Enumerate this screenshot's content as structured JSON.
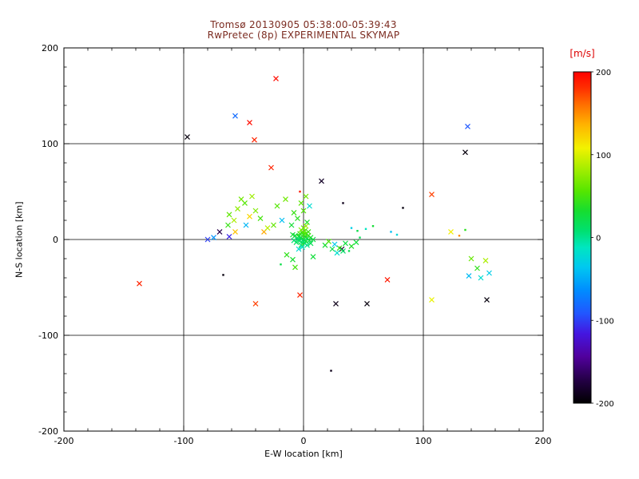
{
  "colors": {
    "title": "#7b2b20",
    "axis": "#000000",
    "mps_label": "#dd0000"
  },
  "chart_data": {
    "type": "scatter",
    "title": "Tromsø 20130905 05:38:00-05:39:43",
    "subtitle": "RwPretec (8p) EXPERIMENTAL SKYMAP",
    "xlabel": "E-W location [km]",
    "ylabel": "N-S location [km]",
    "xlim": [
      -200,
      200
    ],
    "ylim": [
      -200,
      200
    ],
    "xticks": [
      -200,
      -100,
      0,
      100,
      200
    ],
    "yticks": [
      -200,
      -100,
      0,
      100,
      200
    ],
    "minor_tick_step": 20,
    "grid": true,
    "colorbar": {
      "label": "[m/s]",
      "units": "m/s",
      "min": -200,
      "max": 200,
      "ticks": [
        200,
        100,
        0,
        -100,
        -200
      ],
      "stops": [
        [
          0.0,
          "#000000"
        ],
        [
          0.07,
          "#240046"
        ],
        [
          0.14,
          "#51009c"
        ],
        [
          0.21,
          "#4416e0"
        ],
        [
          0.27,
          "#2255ff"
        ],
        [
          0.34,
          "#008cff"
        ],
        [
          0.41,
          "#00c8f0"
        ],
        [
          0.47,
          "#00e6c0"
        ],
        [
          0.52,
          "#00e070"
        ],
        [
          0.58,
          "#16dd30"
        ],
        [
          0.64,
          "#55e600"
        ],
        [
          0.71,
          "#a8ee00"
        ],
        [
          0.77,
          "#f2f200"
        ],
        [
          0.84,
          "#ffb400"
        ],
        [
          0.9,
          "#ff7000"
        ],
        [
          0.95,
          "#ff3000"
        ],
        [
          1.0,
          "#ff0000"
        ]
      ]
    },
    "points_format": [
      "x_km",
      "y_km",
      "velocity_mps",
      "marker(x=cross,d=dot)"
    ],
    "points": [
      [
        -23,
        168,
        195,
        "x"
      ],
      [
        -97,
        107,
        -195,
        "x"
      ],
      [
        -57,
        129,
        -80,
        "x"
      ],
      [
        -45,
        122,
        195,
        "x"
      ],
      [
        -41,
        104,
        185,
        "x"
      ],
      [
        137,
        118,
        -90,
        "x"
      ],
      [
        135,
        91,
        -195,
        "x"
      ],
      [
        -27,
        75,
        185,
        "x"
      ],
      [
        15,
        61,
        -185,
        "x"
      ],
      [
        -3,
        50,
        190,
        "d"
      ],
      [
        83,
        33,
        -195,
        "d"
      ],
      [
        33,
        38,
        -190,
        "d"
      ],
      [
        -137,
        -46,
        185,
        "x"
      ],
      [
        -67,
        -37,
        -195,
        "d"
      ],
      [
        70,
        -42,
        190,
        "x"
      ],
      [
        27,
        -67,
        -190,
        "x"
      ],
      [
        53,
        -67,
        -195,
        "x"
      ],
      [
        -3,
        -58,
        185,
        "x"
      ],
      [
        -40,
        -67,
        175,
        "x"
      ],
      [
        153,
        -63,
        -195,
        "x"
      ],
      [
        107,
        -63,
        105,
        "x"
      ],
      [
        23,
        -137,
        -190,
        "d"
      ],
      [
        107,
        47,
        175,
        "x"
      ],
      [
        32,
        -10,
        -185,
        "x"
      ],
      [
        -62,
        26,
        60,
        "x"
      ],
      [
        -55,
        32,
        75,
        "x"
      ],
      [
        -49,
        38,
        55,
        "x"
      ],
      [
        -58,
        20,
        85,
        "x"
      ],
      [
        -45,
        24,
        120,
        "x"
      ],
      [
        -52,
        42,
        65,
        "x"
      ],
      [
        -63,
        15,
        45,
        "x"
      ],
      [
        -48,
        15,
        -45,
        "x"
      ],
      [
        -40,
        30,
        70,
        "x"
      ],
      [
        -36,
        22,
        50,
        "x"
      ],
      [
        -43,
        45,
        80,
        "x"
      ],
      [
        -57,
        8,
        130,
        "x"
      ],
      [
        -62,
        3,
        -110,
        "x"
      ],
      [
        -70,
        8,
        -170,
        "x"
      ],
      [
        -75,
        2,
        -60,
        "x"
      ],
      [
        -80,
        0,
        -100,
        "x"
      ],
      [
        -33,
        8,
        140,
        "x"
      ],
      [
        -25,
        15,
        60,
        "x"
      ],
      [
        -18,
        20,
        -40,
        "x"
      ],
      [
        -30,
        12,
        90,
        "x"
      ],
      [
        -22,
        35,
        55,
        "x"
      ],
      [
        -15,
        42,
        65,
        "x"
      ],
      [
        0,
        30,
        55,
        "x"
      ],
      [
        -2,
        38,
        58,
        "x"
      ],
      [
        2,
        45,
        65,
        "x"
      ],
      [
        -8,
        28,
        45,
        "x"
      ],
      [
        5,
        35,
        -20,
        "x"
      ],
      [
        -5,
        22,
        40,
        "x"
      ],
      [
        3,
        18,
        35,
        "x"
      ],
      [
        -10,
        15,
        30,
        "x"
      ],
      [
        -2,
        2,
        30,
        "x"
      ],
      [
        0,
        0,
        22,
        "x"
      ],
      [
        1,
        3,
        40,
        "x"
      ],
      [
        -3,
        -1,
        12,
        "x"
      ],
      [
        2,
        -2,
        26,
        "x"
      ],
      [
        0,
        5,
        36,
        "x"
      ],
      [
        -1,
        7,
        46,
        "x"
      ],
      [
        3,
        1,
        16,
        "x"
      ],
      [
        -4,
        3,
        20,
        "x"
      ],
      [
        1,
        -4,
        30,
        "x"
      ],
      [
        -2,
        -6,
        24,
        "x"
      ],
      [
        4,
        4,
        50,
        "x"
      ],
      [
        -5,
        0,
        10,
        "x"
      ],
      [
        2,
        6,
        60,
        "x"
      ],
      [
        0,
        -2,
        6,
        "x"
      ],
      [
        -1,
        -8,
        -12,
        "x"
      ],
      [
        5,
        -1,
        20,
        "x"
      ],
      [
        -3,
        6,
        42,
        "x"
      ],
      [
        1,
        9,
        55,
        "x"
      ],
      [
        -6,
        -3,
        15,
        "x"
      ],
      [
        3,
        -6,
        0,
        "x"
      ],
      [
        -2,
        10,
        70,
        "x"
      ],
      [
        0,
        12,
        62,
        "x"
      ],
      [
        2,
        14,
        80,
        "x"
      ],
      [
        -4,
        -10,
        -22,
        "x"
      ],
      [
        6,
        2,
        34,
        "x"
      ],
      [
        -7,
        4,
        26,
        "x"
      ],
      [
        4,
        8,
        46,
        "x"
      ],
      [
        -1,
        1,
        28,
        "d"
      ],
      [
        2,
        3,
        33,
        "d"
      ],
      [
        -3,
        2,
        18,
        "d"
      ],
      [
        0,
        7,
        52,
        "d"
      ],
      [
        1,
        -1,
        22,
        "d"
      ],
      [
        -5,
        5,
        38,
        "d"
      ],
      [
        3,
        5,
        44,
        "d"
      ],
      [
        -2,
        -3,
        12,
        "d"
      ],
      [
        6,
        -4,
        18,
        "x"
      ],
      [
        8,
        0,
        26,
        "x"
      ],
      [
        -8,
        -1,
        8,
        "x"
      ],
      [
        -9,
        5,
        30,
        "x"
      ],
      [
        18,
        -6,
        32,
        "x"
      ],
      [
        24,
        -10,
        22,
        "x"
      ],
      [
        30,
        -9,
        46,
        "x"
      ],
      [
        35,
        -4,
        26,
        "x"
      ],
      [
        28,
        -14,
        -18,
        "x"
      ],
      [
        40,
        -7,
        36,
        "x"
      ],
      [
        21,
        -2,
        52,
        "x"
      ],
      [
        33,
        -12,
        12,
        "x"
      ],
      [
        44,
        -3,
        28,
        "x"
      ],
      [
        26,
        -5,
        -35,
        "x"
      ],
      [
        38,
        -12,
        20,
        "d"
      ],
      [
        47,
        2,
        18,
        "d"
      ],
      [
        40,
        12,
        -30,
        "d"
      ],
      [
        45,
        9,
        22,
        "d"
      ],
      [
        52,
        11,
        -12,
        "d"
      ],
      [
        58,
        14,
        30,
        "d"
      ],
      [
        73,
        8,
        -40,
        "d"
      ],
      [
        78,
        5,
        -25,
        "d"
      ],
      [
        123,
        8,
        110,
        "x"
      ],
      [
        130,
        4,
        150,
        "d"
      ],
      [
        135,
        10,
        40,
        "d"
      ],
      [
        140,
        -20,
        62,
        "x"
      ],
      [
        152,
        -22,
        85,
        "x"
      ],
      [
        145,
        -30,
        42,
        "x"
      ],
      [
        155,
        -35,
        -32,
        "x"
      ],
      [
        138,
        -38,
        -42,
        "x"
      ],
      [
        148,
        -40,
        -20,
        "x"
      ],
      [
        -14,
        -16,
        42,
        "x"
      ],
      [
        -9,
        -21,
        32,
        "x"
      ],
      [
        -19,
        -26,
        22,
        "d"
      ],
      [
        -7,
        -29,
        50,
        "x"
      ],
      [
        8,
        -18,
        28,
        "x"
      ]
    ]
  }
}
